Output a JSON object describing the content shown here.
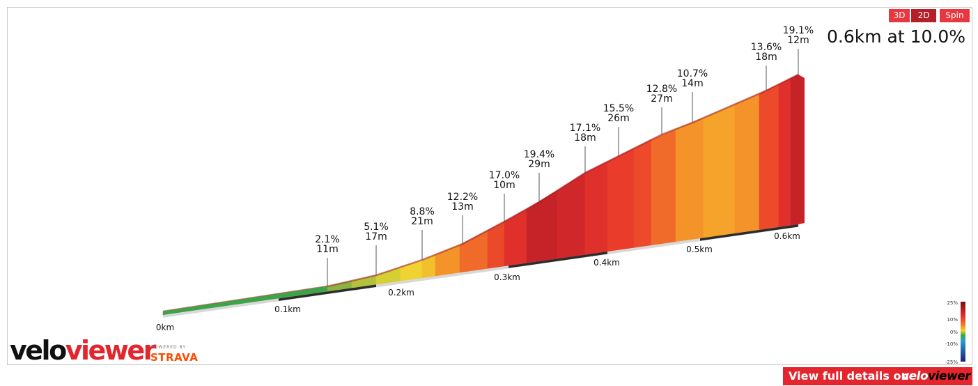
{
  "controls": {
    "btn_3d": "3D",
    "btn_2d": "2D",
    "btn_spin": "Spin"
  },
  "summary": "0.6km at 10.0%",
  "colors": {
    "accent": "#e3262d",
    "strava": "#fc4c02"
  },
  "chart_data": {
    "type": "area",
    "title": "",
    "xlabel": "",
    "ylabel": "",
    "distance_markers": [
      "0km",
      "0.1km",
      "0.2km",
      "0.3km",
      "0.4km",
      "0.5km",
      "0.6km"
    ],
    "segments": [
      {
        "grade": "2.1%",
        "length": "11m"
      },
      {
        "grade": "5.1%",
        "length": "17m"
      },
      {
        "grade": "8.8%",
        "length": "21m"
      },
      {
        "grade": "12.2%",
        "length": "13m"
      },
      {
        "grade": "17.0%",
        "length": "10m"
      },
      {
        "grade": "19.4%",
        "length": "29m"
      },
      {
        "grade": "17.1%",
        "length": "18m"
      },
      {
        "grade": "15.5%",
        "length": "26m"
      },
      {
        "grade": "12.8%",
        "length": "27m"
      },
      {
        "grade": "10.7%",
        "length": "14m"
      },
      {
        "grade": "13.6%",
        "length": "18m"
      },
      {
        "grade": "19.1%",
        "length": "12m"
      }
    ],
    "gradient_legend": [
      "25%",
      "10%",
      "0%",
      "-10%",
      "-25%"
    ]
  },
  "branding": {
    "logo_black": "velo",
    "logo_red": "viewer",
    "powered_by": "POWERED BY",
    "strava": "STRAVA"
  },
  "footer": {
    "view_full_text": "View full details on",
    "brand_white": "velo",
    "brand_black": "viewer"
  }
}
